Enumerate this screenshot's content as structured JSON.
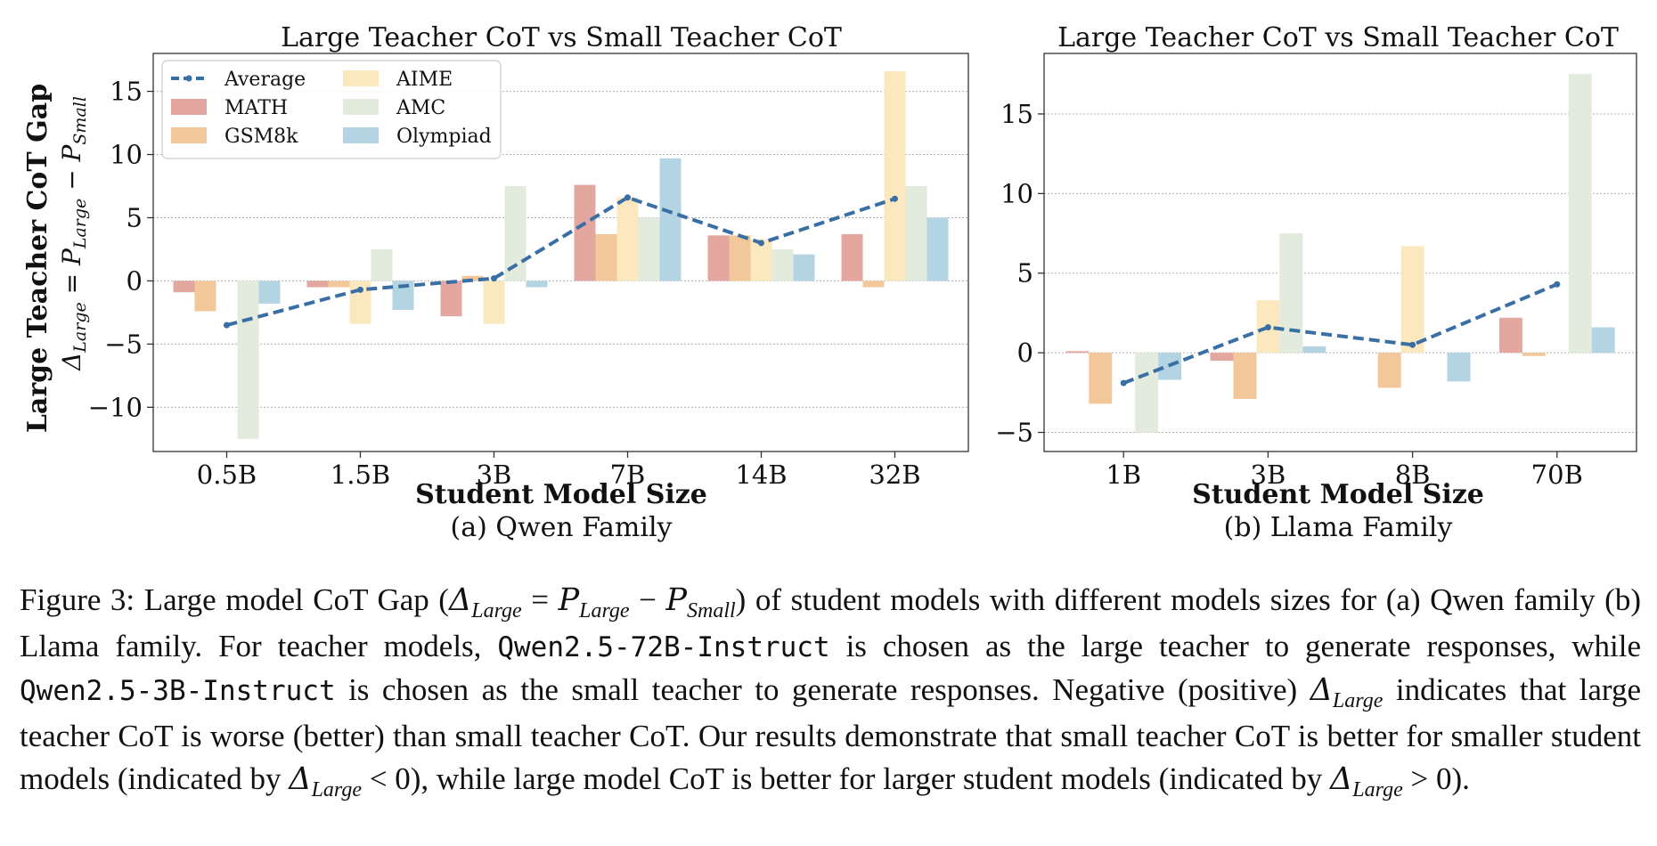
{
  "chart_data": [
    {
      "type": "bar",
      "title": "Large Teacher CoT vs Small Teacher CoT",
      "subtitle": "(a) Qwen Family",
      "xlabel": "Student Model Size",
      "ylabel": "Large Teacher CoT Gap",
      "ylabel2": "ΔLarge = PLarge − PSmall",
      "ylim": [
        -13.5,
        18
      ],
      "yticks": [
        -10,
        -5,
        0,
        5,
        10,
        15
      ],
      "ytick_labels": [
        "−10",
        "−5",
        "0",
        "5",
        "10",
        "15"
      ],
      "grid": true,
      "legend_position": "top-left",
      "categories": [
        "0.5B",
        "1.5B",
        "3B",
        "7B",
        "14B",
        "32B"
      ],
      "series": [
        {
          "name": "MATH",
          "color": "#e3a7a0",
          "values": [
            -0.9,
            -0.5,
            -2.8,
            7.6,
            3.6,
            3.7
          ]
        },
        {
          "name": "GSM8k",
          "color": "#f2c79a",
          "values": [
            -2.4,
            -0.5,
            0.4,
            3.7,
            3.6,
            -0.5
          ]
        },
        {
          "name": "AIME",
          "color": "#fbe8bf",
          "values": [
            0.0,
            -3.4,
            -3.4,
            6.6,
            3.3,
            16.6
          ]
        },
        {
          "name": "AMC",
          "color": "#e3ebdd",
          "values": [
            -12.5,
            2.5,
            7.5,
            5.0,
            2.5,
            7.5
          ]
        },
        {
          "name": "Olympiad",
          "color": "#b3d4e2",
          "values": [
            -1.8,
            -2.3,
            -0.5,
            9.7,
            2.1,
            5.0
          ]
        }
      ],
      "average": {
        "name": "Average",
        "color": "#3a6fa5",
        "values": [
          -3.5,
          -0.7,
          0.2,
          6.6,
          3.0,
          6.5
        ]
      }
    },
    {
      "type": "bar",
      "title": "Large Teacher CoT vs Small Teacher CoT",
      "subtitle": "(b) Llama Family",
      "xlabel": "Student Model Size",
      "ylim": [
        -6.2,
        18.8
      ],
      "yticks": [
        -5,
        0,
        5,
        10,
        15
      ],
      "ytick_labels": [
        "−5",
        "0",
        "5",
        "10",
        "15"
      ],
      "grid": true,
      "categories": [
        "1B",
        "3B",
        "8B",
        "70B"
      ],
      "series": [
        {
          "name": "MATH",
          "color": "#e3a7a0",
          "values": [
            0.1,
            -0.5,
            0.0,
            2.2
          ]
        },
        {
          "name": "GSM8k",
          "color": "#f2c79a",
          "values": [
            -3.2,
            -2.9,
            -2.2,
            -0.2
          ]
        },
        {
          "name": "AIME",
          "color": "#fbe8bf",
          "values": [
            0.0,
            3.3,
            6.7,
            0.0
          ]
        },
        {
          "name": "AMC",
          "color": "#e3ebdd",
          "values": [
            -5.0,
            7.5,
            0.0,
            17.5
          ]
        },
        {
          "name": "Olympiad",
          "color": "#b3d4e2",
          "values": [
            -1.7,
            0.4,
            -1.8,
            1.6
          ]
        }
      ],
      "average": {
        "name": "Average",
        "color": "#3a6fa5",
        "values": [
          -1.9,
          1.6,
          0.5,
          4.3
        ]
      }
    }
  ],
  "caption": {
    "fig_label": "Figure 3:",
    "part1": " Large model CoT Gap (",
    "delta_sym": "Δ",
    "large_sub": "Large",
    "eq": " = ",
    "p_sym": "P",
    "minus": " − ",
    "small_sub": "Small",
    "part2": ") of student models with different models sizes for (a) Qwen family (b) Llama family. For teacher models, ",
    "model_large": "Qwen2.5-72B-Instruct",
    "part3": " is chosen as the large teacher to generate responses, while ",
    "model_small": "Qwen2.5-3B-Instruct",
    "part4": " is chosen as the small teacher to generate responses. Negative (positive) ",
    "part5": " indicates that large teacher CoT is worse (better) than small teacher CoT. Our results demonstrate that small teacher CoT is better for smaller student models (indicated by ",
    "lt_zero": " < 0), while large model CoT is better for larger student models (indicated by ",
    "gt_zero": " > 0)."
  }
}
